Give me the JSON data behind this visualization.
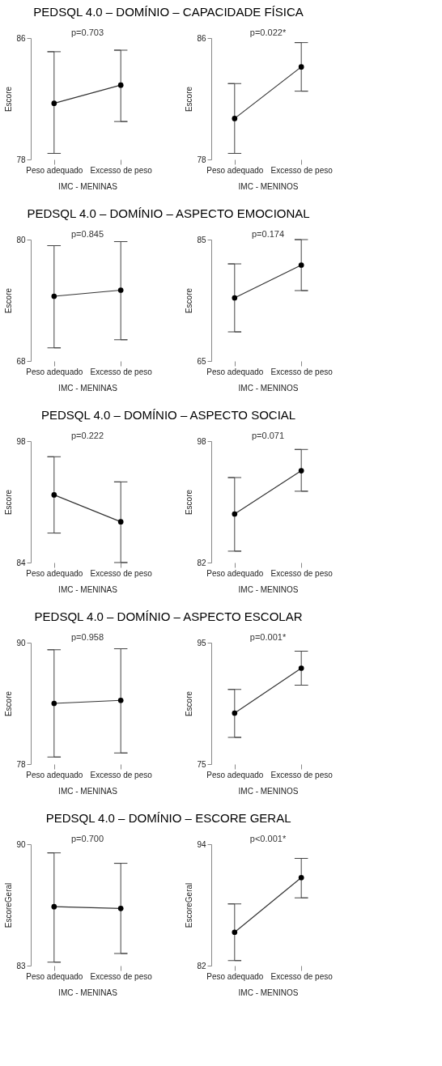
{
  "chart_data": [
    {
      "type": "line",
      "title": "PEDSQL 4.0 – DOMÍNIO – CAPACIDADE FÍSICA",
      "xlabel": "IMC - MENINAS",
      "ylabel": "Escore",
      "categories": [
        "Peso adequado",
        "Excesso de peso"
      ],
      "values": [
        81.7,
        82.9
      ],
      "errors": [
        [
          78.4,
          85.1
        ],
        [
          80.5,
          85.2
        ]
      ],
      "ylim": [
        78,
        86
      ],
      "yticks": [
        78,
        86
      ],
      "marker": "circle",
      "annotations": [
        "p=0.703"
      ]
    },
    {
      "type": "line",
      "xlabel": "IMC - MENINOS",
      "ylabel": "Escore",
      "categories": [
        "Peso adequado",
        "Excesso de peso"
      ],
      "values": [
        80.7,
        84.1
      ],
      "errors": [
        [
          78.4,
          83.0
        ],
        [
          82.5,
          85.7
        ]
      ],
      "ylim": [
        78,
        86
      ],
      "yticks": [
        78,
        86
      ],
      "marker": "circle",
      "annotations": [
        "p=0.022*"
      ]
    },
    {
      "type": "line",
      "title": "PEDSQL 4.0 – DOMÍNIO – ASPECTO EMOCIONAL",
      "xlabel": "IMC - MENINAS",
      "ylabel": "Escore",
      "categories": [
        "Peso adequado",
        "Excesso de peso"
      ],
      "values": [
        74.4,
        75.0
      ],
      "errors": [
        [
          69.3,
          79.4
        ],
        [
          70.1,
          79.8
        ]
      ],
      "ylim": [
        68,
        80
      ],
      "yticks": [
        68,
        80
      ],
      "marker": "circle",
      "annotations": [
        "p=0.845"
      ]
    },
    {
      "type": "line",
      "xlabel": "IMC - MENINOS",
      "ylabel": "Escore",
      "categories": [
        "Peso adequado",
        "Excesso de peso"
      ],
      "values": [
        75.4,
        80.8
      ],
      "errors": [
        [
          69.8,
          81.0
        ],
        [
          76.6,
          85.0
        ]
      ],
      "ylim": [
        65,
        85
      ],
      "yticks": [
        65,
        85
      ],
      "marker": "circle",
      "annotations": [
        "p=0.174"
      ]
    },
    {
      "type": "line",
      "title": "PEDSQL 4.0 – DOMÍNIO – ASPECTO SOCIAL",
      "xlabel": "IMC - MENINAS",
      "ylabel": "Escore",
      "categories": [
        "Peso adequado",
        "Excesso de peso"
      ],
      "values": [
        91.8,
        88.7
      ],
      "errors": [
        [
          87.4,
          96.2
        ],
        [
          84.0,
          93.3
        ]
      ],
      "ylim": [
        84,
        98
      ],
      "yticks": [
        84,
        98
      ],
      "marker": "circle",
      "annotations": [
        "p=0.222"
      ]
    },
    {
      "type": "line",
      "xlabel": "IMC - MENINOS",
      "ylabel": "Escore",
      "categories": [
        "Peso adequado",
        "Excesso de peso"
      ],
      "values": [
        88.4,
        94.1
      ],
      "errors": [
        [
          83.5,
          93.2
        ],
        [
          91.4,
          96.9
        ]
      ],
      "ylim": [
        82,
        98
      ],
      "yticks": [
        82,
        98
      ],
      "marker": "circle",
      "annotations": [
        "p=0.071"
      ]
    },
    {
      "type": "line",
      "title": "PEDSQL 4.0 – DOMÍNIO – ASPECTO ESCOLAR",
      "xlabel": "IMC - MENINAS",
      "ylabel": "Escore",
      "categories": [
        "Peso adequado",
        "Excesso de peso"
      ],
      "values": [
        84.0,
        84.3
      ],
      "errors": [
        [
          78.7,
          89.3
        ],
        [
          79.1,
          89.4
        ]
      ],
      "ylim": [
        78,
        90
      ],
      "yticks": [
        78,
        90
      ],
      "marker": "circle",
      "annotations": [
        "p=0.958"
      ]
    },
    {
      "type": "line",
      "xlabel": "IMC - MENINOS",
      "ylabel": "Escore",
      "categories": [
        "Peso adequado",
        "Excesso de peso"
      ],
      "values": [
        83.4,
        90.8
      ],
      "errors": [
        [
          79.4,
          87.3
        ],
        [
          88.0,
          93.6
        ]
      ],
      "ylim": [
        75,
        95
      ],
      "yticks": [
        75,
        95
      ],
      "marker": "circle",
      "annotations": [
        "p=0.001*"
      ]
    },
    {
      "type": "line",
      "title": "PEDSQL 4.0 – DOMÍNIO – ESCORE GERAL",
      "xlabel": "IMC - MENINAS",
      "ylabel": "EscoreGeral",
      "categories": [
        "Peso adequado",
        "Excesso de peso"
      ],
      "values": [
        86.4,
        86.3
      ],
      "errors": [
        [
          83.2,
          89.5
        ],
        [
          83.7,
          88.9
        ]
      ],
      "ylim": [
        83,
        90
      ],
      "yticks": [
        83,
        90
      ],
      "marker": "circle",
      "annotations": [
        "p=0.700"
      ]
    },
    {
      "type": "line",
      "xlabel": "IMC - MENINOS",
      "ylabel": "EscoreGeral",
      "categories": [
        "Peso adequado",
        "Excesso de peso"
      ],
      "values": [
        85.3,
        90.7
      ],
      "errors": [
        [
          82.5,
          88.1
        ],
        [
          88.7,
          92.6
        ]
      ],
      "ylim": [
        82,
        94
      ],
      "yticks": [
        82,
        94
      ],
      "marker": "circle",
      "annotations": [
        "p<0.001*"
      ]
    }
  ]
}
